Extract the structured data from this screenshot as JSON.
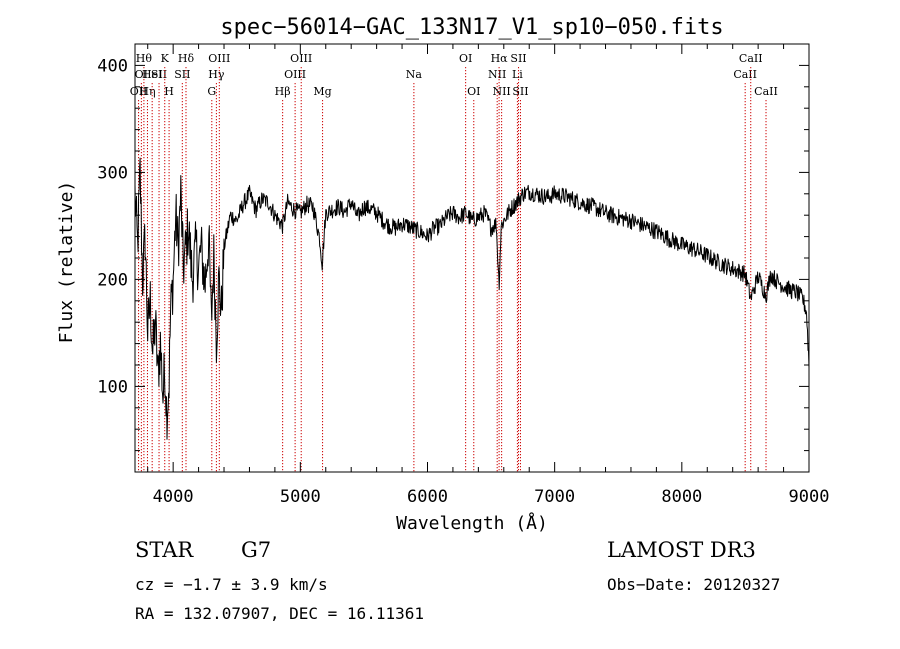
{
  "chart_data": {
    "type": "line",
    "title": "spec−56014−GAC_133N17_V1_sp10−050.fits",
    "xlabel": "Wavelength (Å)",
    "ylabel": "Flux (relative)",
    "xlim": [
      3700,
      9000
    ],
    "ylim": [
      20,
      420
    ],
    "xticks": [
      4000,
      5000,
      6000,
      7000,
      8000,
      9000
    ],
    "yticks": [
      100,
      200,
      300,
      400
    ],
    "grid": false,
    "series": [
      {
        "name": "spectrum",
        "x": [
          3700,
          3720,
          3740,
          3760,
          3780,
          3800,
          3820,
          3840,
          3860,
          3880,
          3900,
          3920,
          3935,
          3950,
          3968,
          3980,
          4000,
          4020,
          4040,
          4060,
          4080,
          4101,
          4120,
          4150,
          4180,
          4200,
          4220,
          4250,
          4280,
          4300,
          4320,
          4340,
          4360,
          4380,
          4400,
          4450,
          4500,
          4550,
          4600,
          4650,
          4700,
          4750,
          4800,
          4861,
          4900,
          4950,
          5000,
          5050,
          5100,
          5150,
          5172,
          5200,
          5250,
          5300,
          5350,
          5400,
          5450,
          5500,
          5550,
          5600,
          5650,
          5700,
          5750,
          5800,
          5850,
          5893,
          5950,
          6000,
          6050,
          6100,
          6150,
          6200,
          6250,
          6300,
          6350,
          6400,
          6450,
          6500,
          6540,
          6563,
          6580,
          6600,
          6650,
          6700,
          6750,
          6800,
          6850,
          6900,
          6950,
          7000,
          7100,
          7200,
          7300,
          7400,
          7500,
          7600,
          7700,
          7800,
          7900,
          8000,
          8100,
          8200,
          8300,
          8400,
          8498,
          8542,
          8600,
          8662,
          8700,
          8750,
          8800,
          8850,
          8900,
          8950,
          8980,
          9000
        ],
        "values": [
          280,
          230,
          300,
          200,
          240,
          150,
          180,
          130,
          160,
          110,
          140,
          90,
          120,
          75,
          105,
          170,
          200,
          260,
          230,
          280,
          210,
          230,
          250,
          200,
          230,
          210,
          230,
          195,
          240,
          160,
          220,
          145,
          200,
          170,
          230,
          260,
          255,
          270,
          280,
          265,
          275,
          272,
          260,
          250,
          272,
          265,
          262,
          270,
          268,
          240,
          215,
          262,
          265,
          268,
          263,
          272,
          258,
          268,
          266,
          262,
          255,
          250,
          248,
          252,
          250,
          247,
          244,
          240,
          248,
          250,
          258,
          262,
          258,
          262,
          255,
          258,
          262,
          248,
          252,
          195,
          250,
          255,
          265,
          272,
          280,
          282,
          280,
          278,
          277,
          280,
          277,
          272,
          268,
          262,
          258,
          255,
          250,
          245,
          238,
          232,
          228,
          222,
          215,
          210,
          205,
          182,
          203,
          185,
          205,
          198,
          194,
          190,
          188,
          182,
          170,
          120
        ]
      }
    ],
    "line_annotations": [
      {
        "x": 3728,
        "row": 2,
        "label": "OII"
      },
      {
        "x": 3750,
        "row": 1,
        "label": "OI"
      },
      {
        "x": 3770,
        "row": 0,
        "label": "Hθ"
      },
      {
        "x": 3798,
        "row": 2,
        "label": "Hη"
      },
      {
        "x": 3835,
        "row": 1,
        "label": "HeI"
      },
      {
        "x": 3889,
        "row": 1,
        "label": "SII"
      },
      {
        "x": 3934,
        "row": 0,
        "label": "K"
      },
      {
        "x": 3968,
        "row": 2,
        "label": "H"
      },
      {
        "x": 4101,
        "row": 0,
        "label": "Hδ"
      },
      {
        "x": 4072,
        "row": 1,
        "label": "SII"
      },
      {
        "x": 4304,
        "row": 2,
        "label": "G"
      },
      {
        "x": 4340,
        "row": 1,
        "label": "Hγ"
      },
      {
        "x": 4363,
        "row": 0,
        "label": "OIII"
      },
      {
        "x": 4861,
        "row": 2,
        "label": "Hβ"
      },
      {
        "x": 4959,
        "row": 1,
        "label": "OIII"
      },
      {
        "x": 5007,
        "row": 0,
        "label": "OIII"
      },
      {
        "x": 5175,
        "row": 2,
        "label": "Mg"
      },
      {
        "x": 5893,
        "row": 1,
        "label": "Na"
      },
      {
        "x": 6300,
        "row": 0,
        "label": "OI"
      },
      {
        "x": 6364,
        "row": 2,
        "label": "OI"
      },
      {
        "x": 6548,
        "row": 1,
        "label": "NII"
      },
      {
        "x": 6563,
        "row": 0,
        "label": "Hα"
      },
      {
        "x": 6583,
        "row": 2,
        "label": "NII"
      },
      {
        "x": 6707,
        "row": 1,
        "label": "Li"
      },
      {
        "x": 6716,
        "row": 0,
        "label": "SII"
      },
      {
        "x": 6731,
        "row": 2,
        "label": "SII"
      },
      {
        "x": 8498,
        "row": 1,
        "label": "CaII"
      },
      {
        "x": 8542,
        "row": 0,
        "label": "CaII"
      },
      {
        "x": 8662,
        "row": 2,
        "label": "CaII"
      }
    ]
  },
  "info": {
    "object_class": "STAR",
    "subclass": "G7",
    "survey": "LAMOST DR3",
    "cz": "cz = −1.7 ± 3.9 km/s",
    "obs_date": "Obs−Date: 20120327",
    "coords": "RA = 132.07907, DEC =  16.11361"
  },
  "colors": {
    "spectrum": "#000000",
    "line_marker": "#cc0000",
    "axis": "#000000"
  }
}
